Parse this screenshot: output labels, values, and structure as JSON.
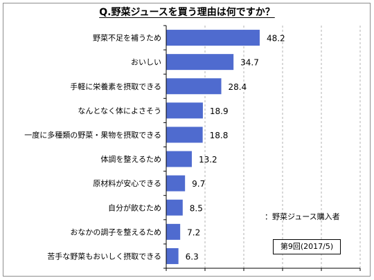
{
  "chart_data": {
    "type": "bar",
    "orientation": "horizontal",
    "title": "Q.野菜ジュースを買う理由は何ですか？",
    "categories": [
      "野菜不足を補うため",
      "おいしい",
      "手軽に栄養素を摂取できる",
      "なんとなく体によさそう",
      "一度に多種類の野菜・果物を摂取できる",
      "体調を整えるため",
      "原材料が安心できる",
      "自分が飲むため",
      "おなかの調子を整えるため",
      "苦手な野菜もおいしく摂取できる"
    ],
    "values": [
      48.2,
      34.7,
      28.4,
      18.9,
      18.8,
      13.2,
      9.7,
      8.5,
      7.2,
      6.3
    ],
    "xlim": [
      0,
      100
    ],
    "grid": true,
    "bar_color": "#4f6bcf"
  },
  "note": "：野菜ジュース購入者",
  "badge": "第9回(2017/5)"
}
